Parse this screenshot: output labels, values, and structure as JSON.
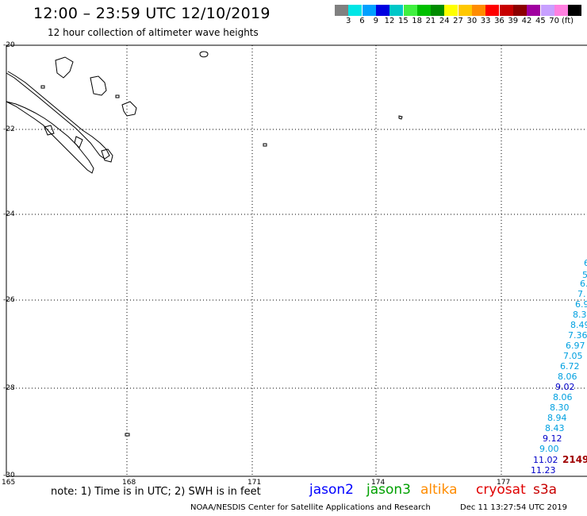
{
  "header": {
    "title": "12:00 – 23:59 UTC 12/10/2019",
    "subtitle": "12 hour collection of altimeter wave heights"
  },
  "legend": {
    "unit": "(ft)",
    "items": [
      {
        "label": "",
        "color": "#808080"
      },
      {
        "label": "3",
        "color": "#00e6e6"
      },
      {
        "label": "6",
        "color": "#00a0ff"
      },
      {
        "label": "9",
        "color": "#0000e0"
      },
      {
        "label": "12",
        "color": "#00c8c8"
      },
      {
        "label": "15",
        "color": "#40f040"
      },
      {
        "label": "18",
        "color": "#00c000"
      },
      {
        "label": "21",
        "color": "#008c00"
      },
      {
        "label": "24",
        "color": "#ffff00"
      },
      {
        "label": "27",
        "color": "#ffc800"
      },
      {
        "label": "30",
        "color": "#ff8c00"
      },
      {
        "label": "33",
        "color": "#ff0000"
      },
      {
        "label": "36",
        "color": "#c80000"
      },
      {
        "label": "39",
        "color": "#8c0000"
      },
      {
        "label": "42",
        "color": "#a000a0"
      },
      {
        "label": "45",
        "color": "#c8a0ff"
      },
      {
        "label": "70",
        "color": "#ff80e0"
      },
      {
        "label": "",
        "color": "#000000"
      }
    ]
  },
  "axes": {
    "lat_labels": [
      "-20",
      "-22",
      "-24",
      "-26",
      "-28",
      "-30"
    ],
    "lon_labels": [
      "165",
      "168",
      "171",
      "174",
      "177"
    ]
  },
  "observations": [
    {
      "text": "6",
      "color": "#00a0e0"
    },
    {
      "text": "5.",
      "color": "#00a0e0"
    },
    {
      "text": "6.",
      "color": "#00a0e0"
    },
    {
      "text": "7.",
      "color": "#00a0e0"
    },
    {
      "text": "6.9",
      "color": "#00a0e0"
    },
    {
      "text": "8.3",
      "color": "#00a0e0"
    },
    {
      "text": "8.49",
      "color": "#00a0e0"
    },
    {
      "text": "7.36",
      "color": "#00a0e0"
    },
    {
      "text": "6.97",
      "color": "#00a0e0"
    },
    {
      "text": "7.05",
      "color": "#00a0e0"
    },
    {
      "text": "6.72",
      "color": "#00a0e0"
    },
    {
      "text": "8.06",
      "color": "#00a0e0"
    },
    {
      "text": "9.02",
      "color": "#0000c8"
    },
    {
      "text": "8.06",
      "color": "#00a0e0"
    },
    {
      "text": "8.30",
      "color": "#00a0e0"
    },
    {
      "text": "8.94",
      "color": "#00a0e0"
    },
    {
      "text": "8.43",
      "color": "#00a0e0"
    },
    {
      "text": "9.12",
      "color": "#0000c8"
    },
    {
      "text": "9.00",
      "color": "#00a0e0"
    },
    {
      "text": "11.02",
      "color": "#0000c8"
    },
    {
      "text": "11.23",
      "color": "#0000c8"
    },
    {
      "text": "2149",
      "color": "#a00000"
    }
  ],
  "note": "note: 1) Time is in UTC; 2) SWH is in feet",
  "satellites": [
    {
      "name": "jason2",
      "color": "#0000ff"
    },
    {
      "name": "jason3",
      "color": "#00a000"
    },
    {
      "name": "altika",
      "color": "#ff8c00"
    },
    {
      "name": "cryosat",
      "color": "#e00000"
    },
    {
      "name": "s3a",
      "color": "#c80000"
    }
  ],
  "footer": {
    "agency": "NOAA/NESDIS Center for Satellite Applications and Research",
    "timestamp": "Dec 11 13:27:54 UTC 2019"
  }
}
